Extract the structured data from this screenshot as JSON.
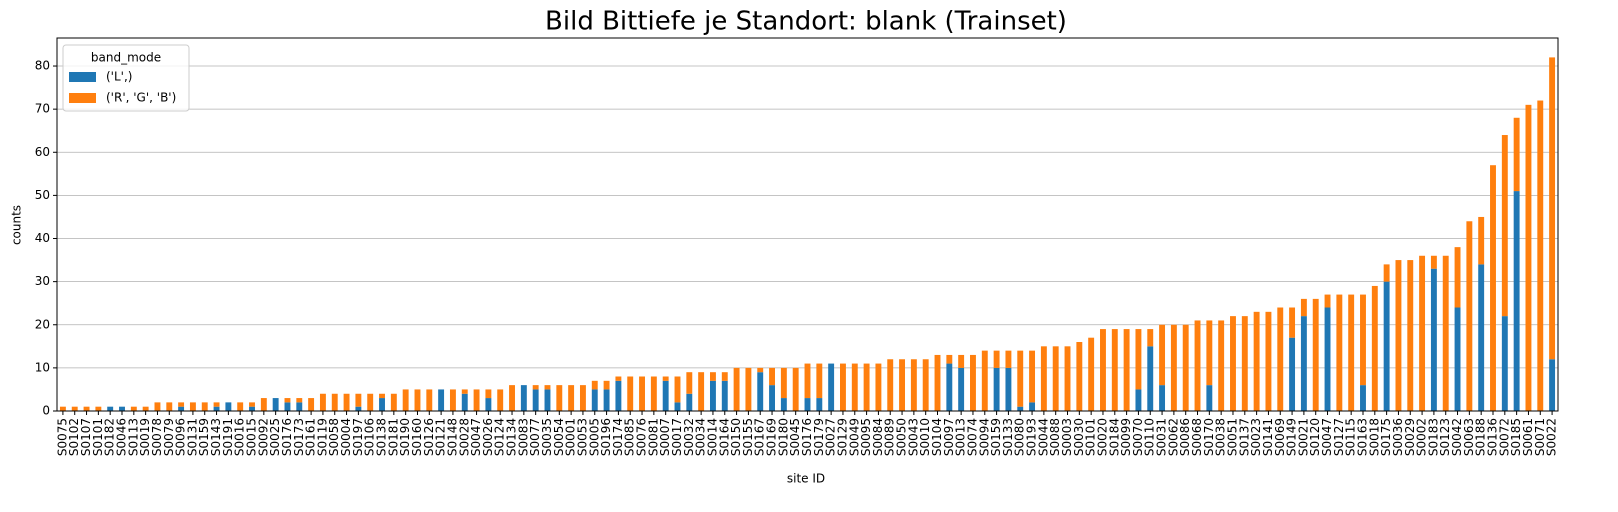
{
  "chart_data": {
    "type": "stacked_bar",
    "title": "Bild Bittiefe je Standort: blank (Trainset)",
    "xlabel": "site ID",
    "ylabel": "counts",
    "legend_title": "band_mode",
    "legend_position": "upper left",
    "grid": "y",
    "categories": [
      "S0075",
      "S0102",
      "S0107",
      "S0101",
      "S0182",
      "S0046",
      "S0113",
      "S0019",
      "S0078",
      "S0079",
      "S0096",
      "S0131",
      "S0159",
      "S0143",
      "S0191",
      "S0016",
      "S0015",
      "S0092",
      "S0025",
      "S0176",
      "S0173",
      "S0161",
      "S0119",
      "S0058",
      "S0004",
      "S0197",
      "S0106",
      "S0138",
      "S0181",
      "S0190",
      "S0160",
      "S0126",
      "S0121",
      "S0148",
      "S0028",
      "S0047",
      "S0026",
      "S0124",
      "S0134",
      "S0083",
      "S0077",
      "S0035",
      "S0054",
      "S0001",
      "S0053",
      "S0005",
      "S0196",
      "S0174",
      "S0085",
      "S0076",
      "S0081",
      "S0007",
      "S0017",
      "S0032",
      "S0034",
      "S0014",
      "S0164",
      "S0150",
      "S0155",
      "S0167",
      "S0169",
      "S0180",
      "S0045",
      "S0176",
      "S0179",
      "S0027",
      "S0129",
      "S0049",
      "S0095",
      "S0084",
      "S0089",
      "S0050",
      "S0043",
      "S0010",
      "S0104",
      "S0097",
      "S0013",
      "S0074",
      "S0094",
      "S0159",
      "S0133",
      "S0080",
      "S0193",
      "S0044",
      "S0088",
      "S0003",
      "S0030",
      "S0101",
      "S0020",
      "S0184",
      "S0099",
      "S0070",
      "S0110",
      "S0031",
      "S0062",
      "S0086",
      "S0068",
      "S0170",
      "S0038",
      "S0051",
      "S0137",
      "S0023",
      "S0141",
      "S0069",
      "S0149",
      "S0021",
      "S0120",
      "S0047",
      "S0127",
      "S0115",
      "S0163",
      "S0018",
      "S0175",
      "S0036",
      "S0029",
      "S0002",
      "S0183",
      "S0123",
      "S0042",
      "S0063",
      "S0188",
      "S0136",
      "S0072",
      "S0185",
      "S0061",
      "S0071",
      "S0022"
    ],
    "series": [
      {
        "name": "('L',)",
        "color": "#1f77b4",
        "values": [
          0,
          0,
          0,
          0,
          1,
          1,
          0,
          0,
          0,
          0,
          1,
          0,
          0,
          1,
          2,
          0,
          1,
          0,
          3,
          2,
          2,
          0,
          0,
          0,
          0,
          1,
          0,
          3,
          0,
          0,
          0,
          0,
          5,
          0,
          4,
          0,
          3,
          0,
          0,
          6,
          5,
          5,
          0,
          0,
          0,
          5,
          5,
          7,
          0,
          0,
          0,
          7,
          2,
          4,
          0,
          7,
          7,
          0,
          0,
          9,
          6,
          3,
          0,
          3,
          3,
          11,
          0,
          0,
          0,
          0,
          0,
          0,
          0,
          0,
          0,
          11,
          10,
          0,
          0,
          10,
          10,
          1,
          2,
          0,
          0,
          0,
          0,
          0,
          0,
          0,
          0,
          5,
          15,
          6,
          0,
          0,
          0,
          6,
          0,
          0,
          0,
          0,
          0,
          0,
          17,
          22,
          0,
          24,
          0,
          0,
          6,
          0,
          30,
          0,
          0,
          0,
          33,
          0,
          24,
          0,
          34,
          0,
          22,
          51,
          0,
          0,
          12
        ]
      },
      {
        "name": "('R', 'G', 'B')",
        "color": "#ff7f0e",
        "values": [
          1,
          1,
          1,
          1,
          0,
          0,
          1,
          1,
          2,
          2,
          1,
          2,
          2,
          1,
          0,
          2,
          1,
          3,
          0,
          1,
          1,
          3,
          4,
          4,
          4,
          3,
          4,
          1,
          4,
          5,
          5,
          5,
          0,
          5,
          1,
          5,
          2,
          5,
          6,
          0,
          1,
          1,
          6,
          6,
          6,
          2,
          2,
          1,
          8,
          8,
          8,
          1,
          6,
          5,
          9,
          2,
          2,
          10,
          10,
          1,
          4,
          7,
          10,
          8,
          8,
          0,
          11,
          11,
          11,
          11,
          12,
          12,
          12,
          12,
          13,
          2,
          3,
          13,
          14,
          4,
          4,
          13,
          12,
          15,
          15,
          15,
          16,
          17,
          19,
          19,
          19,
          14,
          4,
          14,
          20,
          20,
          21,
          15,
          21,
          22,
          22,
          23,
          23,
          24,
          7,
          4,
          26,
          3,
          27,
          27,
          21,
          29,
          4,
          35,
          35,
          36,
          3,
          36,
          14,
          44,
          11,
          57,
          42,
          17,
          71,
          72,
          70
        ]
      }
    ],
    "ylim": [
      0,
      86.5
    ],
    "yticks": [
      0,
      10,
      20,
      30,
      40,
      50,
      60,
      70,
      80
    ]
  }
}
